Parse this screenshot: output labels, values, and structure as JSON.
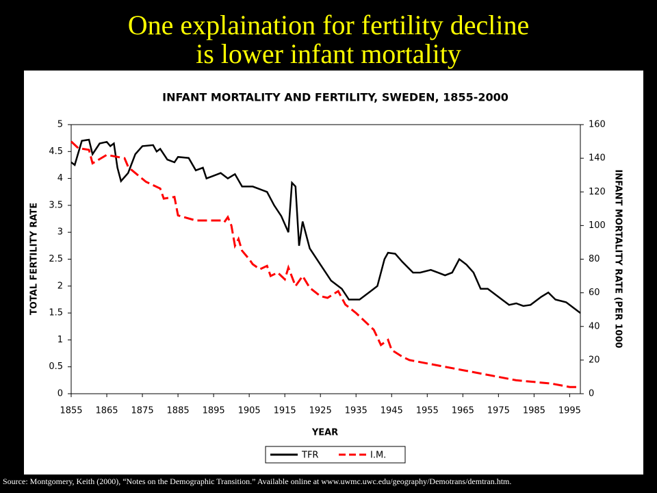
{
  "slide_title": [
    "One explaination for fertility decline",
    "is lower infant mortality"
  ],
  "source": "Source:    Montgomery, Keith (2000), “Notes on the Demographic Transition.”  Available online at www.uwmc.uwc.edu/geography/Demotrans/demtran.htm.",
  "chart_data": {
    "type": "line",
    "title": "INFANT MORTALITY AND FERTILITY, SWEDEN, 1855-2000",
    "x_label": "YEAR",
    "y_label": "TOTAL FERTILITY RATE",
    "y2_label": "INFANT MORTALITY RATE (PER 1000",
    "xlim": [
      1855,
      1998
    ],
    "xticks": [
      1855,
      1865,
      1875,
      1885,
      1895,
      1905,
      1915,
      1925,
      1935,
      1945,
      1955,
      1965,
      1975,
      1985,
      1995
    ],
    "ylim": [
      0,
      5
    ],
    "yticks": [
      0,
      0.5,
      1,
      1.5,
      2,
      2.5,
      3,
      3.5,
      4,
      4.5,
      5
    ],
    "y2lim": [
      0,
      160
    ],
    "y2ticks": [
      0,
      20,
      40,
      60,
      80,
      100,
      120,
      140,
      160
    ],
    "grid": false,
    "legend": "bottom",
    "series": [
      {
        "name": "TFR",
        "color": "#000000",
        "dash": false,
        "x": [
          1855,
          1856,
          1858,
          1860,
          1861,
          1863,
          1865,
          1866,
          1867,
          1868,
          1869,
          1871,
          1873,
          1875,
          1878,
          1879,
          1880,
          1882,
          1884,
          1885,
          1888,
          1890,
          1892,
          1893,
          1895,
          1897,
          1899,
          1901,
          1903,
          1906,
          1908,
          1910,
          1912,
          1914,
          1916,
          1917,
          1918,
          1919,
          1920,
          1922,
          1925,
          1928,
          1931,
          1933,
          1936,
          1939,
          1941,
          1943,
          1944,
          1946,
          1948,
          1951,
          1953,
          1956,
          1958,
          1960,
          1962,
          1964,
          1966,
          1968,
          1970,
          1972,
          1974,
          1976,
          1978,
          1980,
          1982,
          1984,
          1987,
          1989,
          1991,
          1994,
          1996,
          1998
        ],
        "values": [
          4.3,
          4.25,
          4.7,
          4.72,
          4.45,
          4.65,
          4.68,
          4.6,
          4.65,
          4.2,
          3.95,
          4.1,
          4.45,
          4.6,
          4.62,
          4.5,
          4.55,
          4.35,
          4.3,
          4.4,
          4.38,
          4.15,
          4.2,
          4.0,
          4.05,
          4.1,
          4.0,
          4.08,
          3.85,
          3.85,
          3.8,
          3.75,
          3.5,
          3.3,
          3.0,
          3.92,
          3.85,
          2.75,
          3.2,
          2.7,
          2.4,
          2.1,
          1.95,
          1.75,
          1.75,
          1.9,
          2.0,
          2.5,
          2.62,
          2.6,
          2.45,
          2.25,
          2.25,
          2.3,
          2.25,
          2.2,
          2.25,
          2.5,
          2.4,
          2.25,
          1.95,
          1.95,
          1.85,
          1.75,
          1.65,
          1.68,
          1.63,
          1.65,
          1.8,
          1.88,
          1.75,
          1.7,
          1.6,
          1.5
        ]
      },
      {
        "name": "I.M.",
        "color": "#ff0000",
        "dash": true,
        "axis": "y2",
        "x": [
          1855,
          1857,
          1860,
          1861,
          1865,
          1870,
          1871,
          1872,
          1876,
          1880,
          1881,
          1884,
          1885,
          1890,
          1897,
          1898,
          1899,
          1900,
          1901,
          1902,
          1903,
          1905,
          1906,
          1908,
          1910,
          1911,
          1913,
          1915,
          1916,
          1918,
          1920,
          1922,
          1925,
          1927,
          1930,
          1932,
          1935,
          1938,
          1940,
          1942,
          1944,
          1945,
          1948,
          1950,
          1955,
          1960,
          1965,
          1970,
          1975,
          1980,
          1985,
          1990,
          1995,
          1998
        ],
        "values": [
          150,
          146,
          145,
          137,
          142,
          140,
          135,
          133,
          126,
          122,
          116,
          117,
          106,
          103,
          103,
          102,
          105,
          100,
          88,
          92,
          85,
          80,
          77,
          74,
          76,
          70,
          72,
          68,
          75,
          64,
          70,
          63,
          58,
          57,
          61,
          53,
          48,
          42,
          38,
          29,
          32,
          26,
          22,
          20,
          18,
          16,
          14,
          12,
          10,
          8,
          7,
          6,
          4,
          4
        ]
      }
    ]
  }
}
